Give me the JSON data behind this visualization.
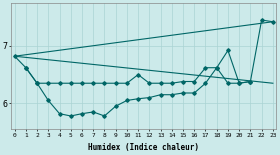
{
  "xlabel": "Humidex (Indice chaleur)",
  "bg_color": "#cceaea",
  "grid_color": "#aad4d4",
  "line_color": "#006666",
  "x_ticks": [
    0,
    1,
    2,
    3,
    4,
    5,
    6,
    7,
    8,
    9,
    10,
    11,
    12,
    13,
    14,
    15,
    16,
    17,
    18,
    19,
    20,
    21,
    22,
    23
  ],
  "ylim": [
    5.55,
    7.75
  ],
  "yticks": [
    6,
    7
  ],
  "xlim": [
    -0.3,
    23.3
  ],
  "line1_x": [
    0,
    23
  ],
  "line1_y": [
    6.82,
    7.42
  ],
  "line2_x": [
    0,
    23
  ],
  "line2_y": [
    6.82,
    6.35
  ],
  "series_main_x": [
    0,
    1,
    2,
    3,
    4,
    5,
    6,
    7,
    8,
    9,
    10,
    11,
    12,
    13,
    14,
    15,
    16,
    17,
    18,
    19,
    20,
    21,
    22,
    23
  ],
  "series_main_y": [
    6.82,
    6.62,
    6.35,
    6.35,
    6.35,
    6.35,
    6.35,
    6.35,
    6.35,
    6.35,
    6.35,
    6.5,
    6.35,
    6.35,
    6.35,
    6.38,
    6.38,
    6.62,
    6.62,
    6.35,
    6.35,
    6.38,
    7.45,
    7.42
  ],
  "series_lower_x": [
    1,
    2,
    3,
    4,
    5,
    6,
    7,
    8,
    9,
    10,
    11,
    12,
    13,
    14,
    15,
    16,
    17,
    18,
    19,
    20,
    21
  ],
  "series_lower_y": [
    6.62,
    6.35,
    6.05,
    5.82,
    5.78,
    5.82,
    5.85,
    5.78,
    5.95,
    6.05,
    6.08,
    6.1,
    6.15,
    6.15,
    6.18,
    6.18,
    6.35,
    6.62,
    6.92,
    6.35,
    6.38
  ]
}
